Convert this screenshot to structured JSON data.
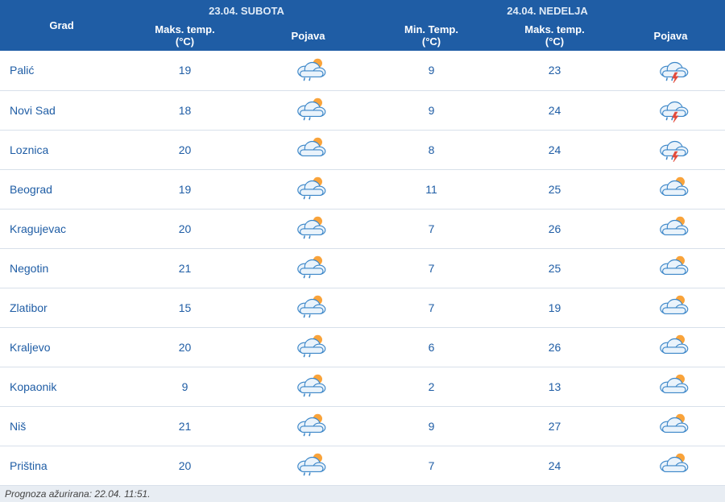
{
  "header": {
    "city_label": "Grad",
    "day1_label": "23.04. SUBOTA",
    "day2_label": "24.04. NEDELJA",
    "max_temp_label": "Maks. temp.",
    "min_temp_label": "Min. Temp.",
    "pojava_label": "Pojava",
    "unit_label": "(°C)"
  },
  "colors": {
    "header_bg": "#1f5da5",
    "header_text": "#ffffff",
    "body_text": "#1f5da5",
    "row_border": "#d8e0ea",
    "footer_bg": "#e8edf3",
    "cloud_fill": "#eaf3fb",
    "cloud_stroke": "#3b86c8",
    "sun_fill": "#f9a33a",
    "bolt_fill": "#e24a3b"
  },
  "rows": [
    {
      "city": "Palić",
      "d1_max": "19",
      "d1_icon": "sun-cloud-rain",
      "d2_min": "9",
      "d2_max": "23",
      "d2_icon": "cloud-storm"
    },
    {
      "city": "Novi Sad",
      "d1_max": "18",
      "d1_icon": "sun-cloud-rain",
      "d2_min": "9",
      "d2_max": "24",
      "d2_icon": "cloud-storm"
    },
    {
      "city": "Loznica",
      "d1_max": "20",
      "d1_icon": "sun-cloud",
      "d2_min": "8",
      "d2_max": "24",
      "d2_icon": "cloud-storm"
    },
    {
      "city": "Beograd",
      "d1_max": "19",
      "d1_icon": "sun-cloud-rain",
      "d2_min": "11",
      "d2_max": "25",
      "d2_icon": "sun-cloud"
    },
    {
      "city": "Kragujevac",
      "d1_max": "20",
      "d1_icon": "sun-cloud-rain",
      "d2_min": "7",
      "d2_max": "26",
      "d2_icon": "sun-cloud"
    },
    {
      "city": "Negotin",
      "d1_max": "21",
      "d1_icon": "sun-cloud-rain",
      "d2_min": "7",
      "d2_max": "25",
      "d2_icon": "sun-cloud"
    },
    {
      "city": "Zlatibor",
      "d1_max": "15",
      "d1_icon": "sun-cloud-rain",
      "d2_min": "7",
      "d2_max": "19",
      "d2_icon": "sun-cloud"
    },
    {
      "city": "Kraljevo",
      "d1_max": "20",
      "d1_icon": "sun-cloud-rain",
      "d2_min": "6",
      "d2_max": "26",
      "d2_icon": "sun-cloud"
    },
    {
      "city": "Kopaonik",
      "d1_max": "9",
      "d1_icon": "sun-cloud-rain",
      "d2_min": "2",
      "d2_max": "13",
      "d2_icon": "sun-cloud"
    },
    {
      "city": "Niš",
      "d1_max": "21",
      "d1_icon": "sun-cloud-rain",
      "d2_min": "9",
      "d2_max": "27",
      "d2_icon": "sun-cloud"
    },
    {
      "city": "Priština",
      "d1_max": "20",
      "d1_icon": "sun-cloud-rain",
      "d2_min": "7",
      "d2_max": "24",
      "d2_icon": "sun-cloud"
    }
  ],
  "footer": {
    "text": "Prognoza ažurirana:  22.04. 11:51."
  },
  "column_widths": {
    "city": "17%",
    "d1_max": "17%",
    "d1_icon": "17%",
    "d2_min": "17%",
    "d2_max": "17%",
    "d2_icon": "15%"
  }
}
